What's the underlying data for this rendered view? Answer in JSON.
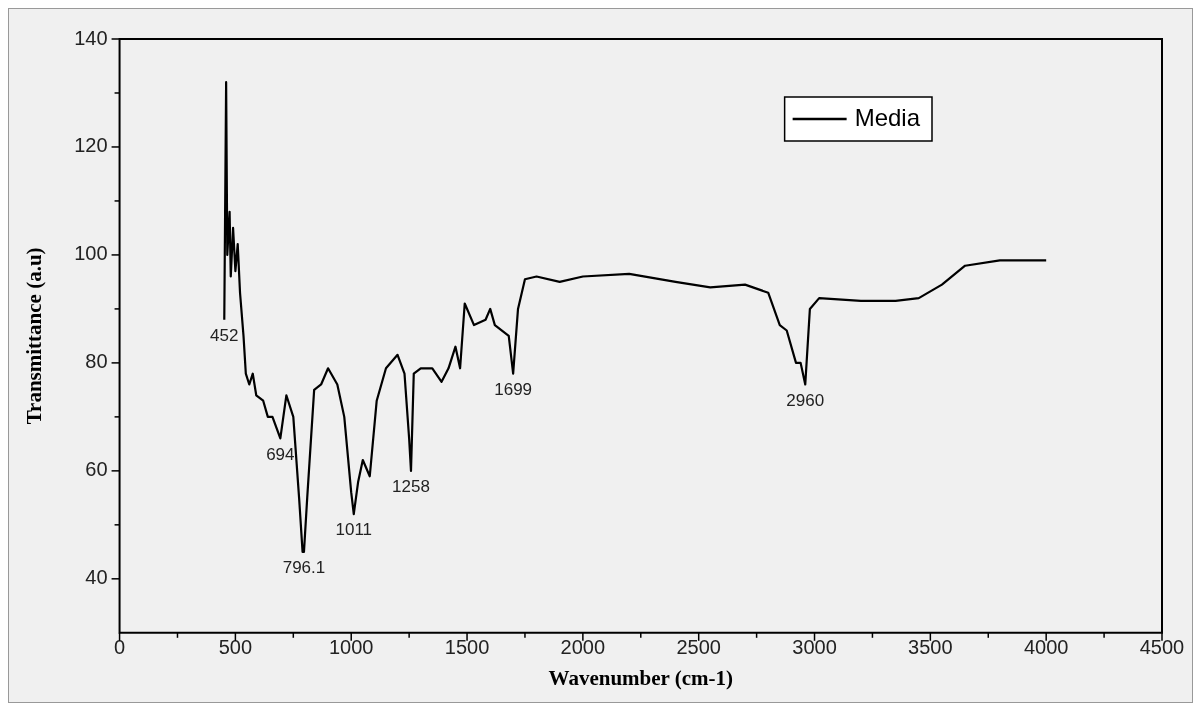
{
  "chart_data": {
    "type": "line",
    "xlabel": "Wavenumber (cm-1)",
    "ylabel": "Transmittance (a.u)",
    "x": [
      452,
      460,
      465,
      475,
      480,
      490,
      500,
      510,
      520,
      535,
      545,
      560,
      575,
      590,
      620,
      640,
      660,
      694,
      720,
      750,
      775,
      790,
      796,
      810,
      840,
      870,
      900,
      940,
      970,
      1000,
      1011,
      1030,
      1050,
      1080,
      1110,
      1150,
      1200,
      1230,
      1250,
      1258,
      1270,
      1300,
      1350,
      1390,
      1420,
      1450,
      1470,
      1490,
      1530,
      1580,
      1600,
      1620,
      1680,
      1699,
      1720,
      1750,
      1800,
      1900,
      2000,
      2200,
      2400,
      2550,
      2700,
      2800,
      2850,
      2880,
      2920,
      2940,
      2960,
      2980,
      3020,
      3200,
      3350,
      3450,
      3550,
      3650,
      3800,
      4000
    ],
    "series": [
      {
        "name": "Media",
        "color": "#000000",
        "values": [
          88,
          132,
          100,
          108,
          96,
          105,
          97,
          102,
          93,
          85,
          78,
          76,
          78,
          74,
          73,
          70,
          70,
          66,
          74,
          70,
          55,
          45,
          45,
          55,
          75,
          76,
          79,
          76,
          70,
          56,
          52,
          58,
          62,
          59,
          73,
          79,
          81.5,
          78,
          66,
          60,
          78,
          79,
          79,
          76.5,
          79,
          83,
          79,
          91,
          87,
          88,
          90,
          87,
          85,
          78,
          90,
          95.5,
          96,
          95,
          96,
          96.5,
          95,
          94,
          94.5,
          93,
          87,
          86,
          80,
          80,
          76,
          90,
          92,
          91.5,
          91.5,
          92,
          94.5,
          98,
          99,
          99
        ]
      }
    ],
    "xlim": [
      0,
      4500
    ],
    "xticks": [
      0,
      500,
      1000,
      1500,
      2000,
      2500,
      3000,
      3500,
      4000,
      4500
    ],
    "ylim": [
      30,
      140
    ],
    "yticks": [
      40,
      60,
      80,
      100,
      120,
      140
    ],
    "annotations": [
      {
        "text": "452",
        "x": 452,
        "y": 88
      },
      {
        "text": "694",
        "x": 694,
        "y": 66
      },
      {
        "text": "796.1",
        "x": 796,
        "y": 45
      },
      {
        "text": "1011",
        "x": 1011,
        "y": 52
      },
      {
        "text": "1258",
        "x": 1258,
        "y": 60
      },
      {
        "text": "1699",
        "x": 1699,
        "y": 78
      },
      {
        "text": "2960",
        "x": 2960,
        "y": 76
      }
    ],
    "legend": "top right",
    "grid": false,
    "marker": "none",
    "line_style": "solid"
  }
}
